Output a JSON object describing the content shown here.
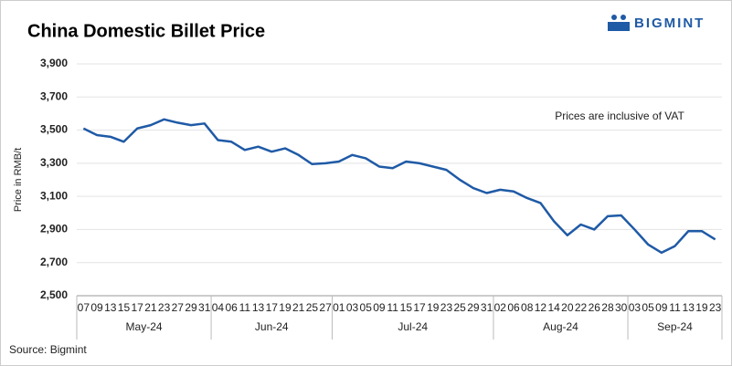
{
  "brand": "BIGMINT",
  "chart_data": {
    "type": "line",
    "title": "China Domestic Billet Price",
    "y_label": "Price in RMB/t",
    "annotation": "Prices are inclusive of VAT",
    "source": "Source: Bigmint",
    "categories": [
      "07",
      "09",
      "13",
      "15",
      "17",
      "21",
      "23",
      "27",
      "29",
      "31",
      "04",
      "06",
      "11",
      "13",
      "17",
      "19",
      "21",
      "25",
      "27",
      "01",
      "03",
      "05",
      "09",
      "11",
      "15",
      "17",
      "19",
      "23",
      "25",
      "29",
      "31",
      "02",
      "06",
      "08",
      "12",
      "14",
      "20",
      "22",
      "26",
      "28",
      "30",
      "03",
      "05",
      "09",
      "11",
      "13",
      "19",
      "23"
    ],
    "x_groups": [
      {
        "label": "May-24",
        "size": 10
      },
      {
        "label": "Jun-24",
        "size": 9
      },
      {
        "label": "Jul-24",
        "size": 12
      },
      {
        "label": "Aug-24",
        "size": 10
      },
      {
        "label": "Sep-24",
        "size": 7
      }
    ],
    "series": [
      {
        "name": "China Domestic Billet Price",
        "color": "#1f5aa6",
        "values": [
          3510,
          3470,
          3460,
          3430,
          3510,
          3530,
          3565,
          3545,
          3530,
          3540,
          3440,
          3430,
          3380,
          3400,
          3370,
          3390,
          3350,
          3295,
          3300,
          3310,
          3350,
          3330,
          3280,
          3270,
          3310,
          3300,
          3280,
          3260,
          3200,
          3150,
          3120,
          3140,
          3130,
          3090,
          3060,
          2950,
          2865,
          2930,
          2900,
          2980,
          2985,
          2900,
          2810,
          2760,
          2800,
          2890,
          2890,
          2840
        ]
      }
    ],
    "ylim": [
      2500,
      3900
    ],
    "yticks": [
      {
        "value": 2500,
        "label": "2,500"
      },
      {
        "value": 2700,
        "label": "2,700"
      },
      {
        "value": 2900,
        "label": "2,900"
      },
      {
        "value": 3100,
        "label": "3,100"
      },
      {
        "value": 3300,
        "label": "3,300"
      },
      {
        "value": 3500,
        "label": "3,500"
      },
      {
        "value": 3700,
        "label": "3,700"
      },
      {
        "value": 3900,
        "label": "3,900"
      }
    ],
    "grid": true
  }
}
